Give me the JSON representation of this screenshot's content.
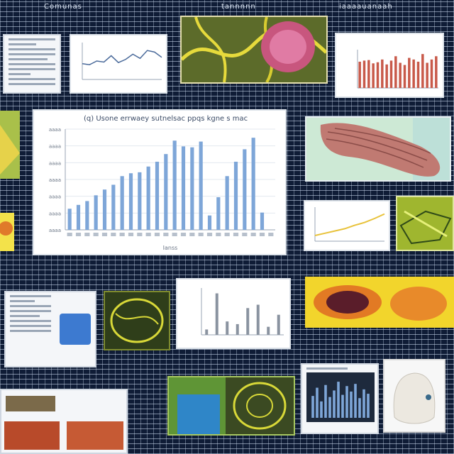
{
  "headers": [
    "Comunas",
    "tannnnn",
    "iaaaauanaah"
  ],
  "main_chart": {
    "title": "(q) Usone errwaey sutnelsac ppqs kgne s mac",
    "xlabel": "Ianss",
    "ytick_labels": [
      "aaaa",
      "aaaa",
      "aaaa",
      "aaaa",
      "aaaa",
      "aaaa",
      "aaaa"
    ],
    "accent": "#7ea6d8"
  },
  "chart_data": [
    {
      "type": "bar",
      "title": "(q) Usone errwaey sutnelsac ppqs kgne s mac",
      "xlabel": "Ianss",
      "ylabel": "",
      "categories": [
        "a",
        "b",
        "c",
        "d",
        "e",
        "f",
        "g",
        "h",
        "i",
        "j",
        "k",
        "l",
        "m",
        "n",
        "o",
        "p",
        "q",
        "r",
        "s",
        "t",
        "u",
        "v",
        "w",
        "x"
      ],
      "values": [
        22,
        26,
        30,
        36,
        42,
        47,
        56,
        59,
        60,
        66,
        71,
        79,
        93,
        87,
        86,
        92,
        15,
        34,
        56,
        71,
        84,
        96,
        18,
        0
      ],
      "ylim": [
        0,
        105
      ],
      "grid": true
    },
    {
      "type": "bar",
      "title": "",
      "categories": [
        "1",
        "2",
        "3",
        "4",
        "5",
        "6",
        "7",
        "8",
        "9",
        "10",
        "11",
        "12",
        "13",
        "14",
        "15",
        "16",
        "17",
        "18"
      ],
      "values": [
        48,
        50,
        51,
        45,
        47,
        52,
        43,
        50,
        58,
        46,
        42,
        55,
        52,
        48,
        62,
        46,
        52,
        58
      ],
      "ylim": [
        0,
        70
      ]
    },
    {
      "type": "line",
      "title": "",
      "x": [
        1,
        2,
        3,
        4,
        5,
        6,
        7,
        8,
        9,
        10,
        11,
        12
      ],
      "values": [
        30,
        28,
        35,
        33,
        45,
        32,
        38,
        48,
        40,
        55,
        52,
        42
      ],
      "ylim": [
        0,
        70
      ]
    },
    {
      "type": "line",
      "title": "",
      "x": [
        1,
        2,
        3,
        4,
        5,
        6,
        7,
        8
      ],
      "values": [
        10,
        14,
        18,
        22,
        28,
        33,
        40,
        48
      ],
      "ylim": [
        0,
        60
      ]
    },
    {
      "type": "bar",
      "title": "",
      "categories": [
        "1",
        "2",
        "3",
        "4",
        "5",
        "6",
        "7",
        "8"
      ],
      "values": [
        8,
        62,
        20,
        16,
        40,
        45,
        12,
        30
      ],
      "ylim": [
        0,
        70
      ]
    },
    {
      "type": "bar",
      "title": "",
      "categories": [
        "1",
        "2",
        "3",
        "4",
        "5",
        "6",
        "7",
        "8",
        "9",
        "10",
        "11",
        "12",
        "13",
        "14"
      ],
      "values": [
        40,
        55,
        30,
        60,
        38,
        50,
        66,
        42,
        58,
        48,
        62,
        36,
        52,
        44
      ],
      "ylim": [
        0,
        70
      ]
    }
  ],
  "colors": {
    "bar_red": "#c85a4a",
    "bar_blue": "#7ea6d8",
    "line_blue": "#4a6a9a",
    "line_yellow": "#e8c23a",
    "dark_panel": "#1e2a3d"
  }
}
